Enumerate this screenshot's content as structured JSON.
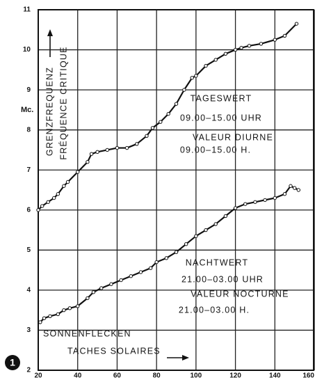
{
  "chart_data": {
    "type": "line",
    "ylabel": [
      "GRENZFREQUENZ",
      "FRÉQUENCE CRITIQUE"
    ],
    "yunit": "Mc.",
    "xlabel": [
      "SONNENFLECKEN",
      "TACHES SOLAIRES"
    ],
    "figure_number": "1",
    "annotations": [
      "TAGESWERT",
      "09.00–15.00 UHR",
      "VALEUR DIURNE",
      "09.00–15.00 H.",
      "NACHTWERT",
      "21.00–03.00 UHR",
      "VALEUR NOCTURNE",
      "21.00–03.00 H."
    ],
    "xlim": [
      20,
      160
    ],
    "xticks": [
      20,
      40,
      60,
      80,
      100,
      120,
      140,
      160
    ],
    "ylim": [
      2,
      11
    ],
    "yticks": [
      2,
      3,
      4,
      5,
      6,
      7,
      8,
      9,
      10,
      11
    ],
    "grid": true,
    "series": [
      {
        "color": "#111111",
        "x": [
          20,
          22,
          25,
          28,
          30,
          33,
          35,
          40,
          45,
          47,
          50,
          55,
          60,
          65,
          70,
          75,
          78,
          82,
          86,
          90,
          94,
          98,
          100,
          105,
          110,
          115,
          120,
          123,
          127,
          133,
          140,
          145,
          151
        ],
        "values": [
          6.0,
          6.1,
          6.2,
          6.3,
          6.4,
          6.6,
          6.7,
          6.95,
          7.2,
          7.4,
          7.45,
          7.5,
          7.55,
          7.55,
          7.65,
          7.85,
          8.05,
          8.2,
          8.4,
          8.65,
          9.0,
          9.3,
          9.35,
          9.6,
          9.75,
          9.9,
          10.0,
          10.05,
          10.1,
          10.15,
          10.25,
          10.35,
          10.65
        ]
      },
      {
        "color": "#111111",
        "x": [
          21,
          23,
          26,
          30,
          33,
          36,
          40,
          45,
          48,
          52,
          57,
          62,
          67,
          72,
          77,
          80,
          85,
          90,
          95,
          100,
          105,
          110,
          115,
          120,
          125,
          130,
          135,
          140,
          145,
          148,
          150,
          152
        ],
        "values": [
          3.2,
          3.3,
          3.35,
          3.4,
          3.5,
          3.55,
          3.6,
          3.8,
          3.95,
          4.05,
          4.15,
          4.25,
          4.35,
          4.45,
          4.55,
          4.7,
          4.8,
          4.95,
          5.15,
          5.35,
          5.5,
          5.65,
          5.85,
          6.05,
          6.15,
          6.2,
          6.25,
          6.3,
          6.4,
          6.6,
          6.55,
          6.5
        ]
      }
    ]
  }
}
